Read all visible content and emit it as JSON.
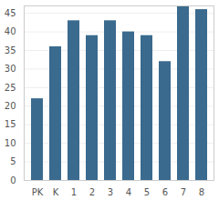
{
  "chart_data": {
    "type": "bar",
    "categories": [
      "PK",
      "K",
      "1",
      "2",
      "3",
      "4",
      "5",
      "6",
      "7",
      "8"
    ],
    "values": [
      22,
      36,
      43,
      39,
      43,
      40,
      39,
      32,
      47,
      46
    ],
    "color": "#3a6a8e",
    "ylim": [
      0,
      47
    ],
    "yticks": [
      0,
      5,
      10,
      15,
      20,
      25,
      30,
      35,
      40,
      45
    ],
    "grid": true
  }
}
